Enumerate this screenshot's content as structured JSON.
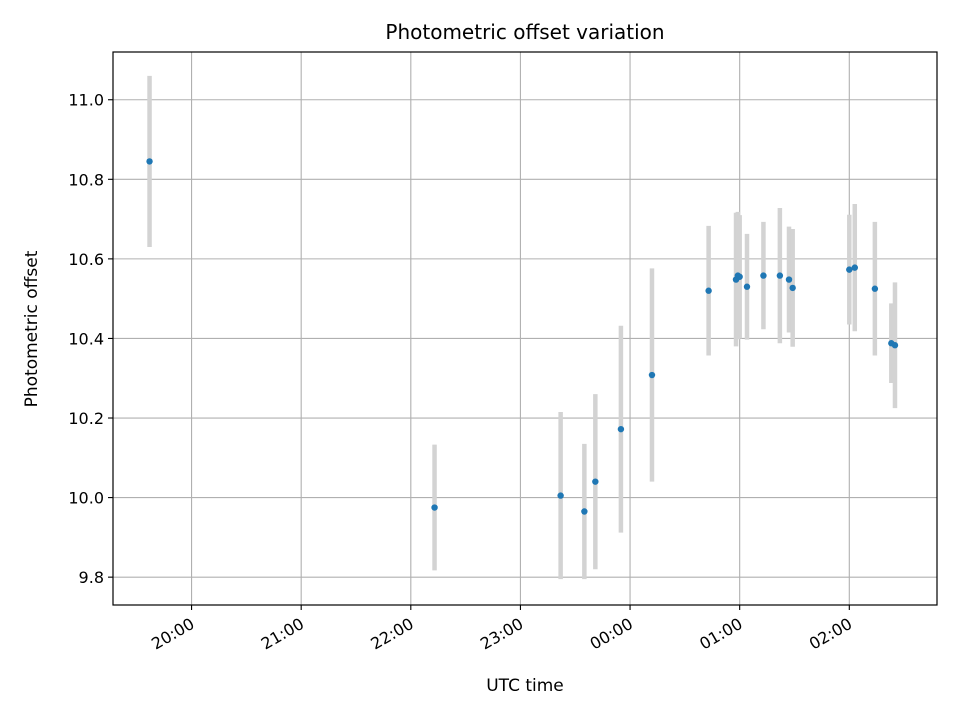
{
  "chart_data": {
    "type": "scatter",
    "title": "Photometric offset variation",
    "xlabel": "UTC time",
    "ylabel": "Photometric offset",
    "grid": true,
    "x_ticks": [
      "20:00",
      "21:00",
      "22:00",
      "23:00",
      "00:00",
      "01:00",
      "02:00"
    ],
    "y_ticks": [
      "9.8",
      "10.0",
      "10.2",
      "10.4",
      "10.6",
      "10.8",
      "11.0"
    ],
    "xlim": [
      "19:17",
      "02:48"
    ],
    "ylim": [
      9.73,
      11.12
    ],
    "point_color": "#1f77b4",
    "errorbar_color": "#d3d3d3",
    "points": [
      {
        "x": "19:37",
        "y": 10.845,
        "err": 0.215
      },
      {
        "x": "22:13",
        "y": 9.975,
        "err": 0.158
      },
      {
        "x": "23:22",
        "y": 10.005,
        "err": 0.21
      },
      {
        "x": "23:35",
        "y": 9.965,
        "err": 0.17
      },
      {
        "x": "23:41",
        "y": 10.04,
        "err": 0.22
      },
      {
        "x": "23:55",
        "y": 10.172,
        "err": 0.26
      },
      {
        "x": "00:12",
        "y": 10.308,
        "err": 0.268
      },
      {
        "x": "00:43",
        "y": 10.52,
        "err": 0.163
      },
      {
        "x": "00:58",
        "y": 10.548,
        "err": 0.168
      },
      {
        "x": "00:59",
        "y": 10.558,
        "err": 0.16
      },
      {
        "x": "01:00",
        "y": 10.555,
        "err": 0.155
      },
      {
        "x": "01:04",
        "y": 10.53,
        "err": 0.133
      },
      {
        "x": "01:13",
        "y": 10.558,
        "err": 0.135
      },
      {
        "x": "01:22",
        "y": 10.558,
        "err": 0.17
      },
      {
        "x": "01:27",
        "y": 10.548,
        "err": 0.133
      },
      {
        "x": "01:29",
        "y": 10.527,
        "err": 0.148
      },
      {
        "x": "02:00",
        "y": 10.573,
        "err": 0.138
      },
      {
        "x": "02:03",
        "y": 10.578,
        "err": 0.16
      },
      {
        "x": "02:14",
        "y": 10.525,
        "err": 0.168
      },
      {
        "x": "02:23",
        "y": 10.388,
        "err": 0.1
      },
      {
        "x": "02:25",
        "y": 10.383,
        "err": 0.158
      }
    ]
  }
}
